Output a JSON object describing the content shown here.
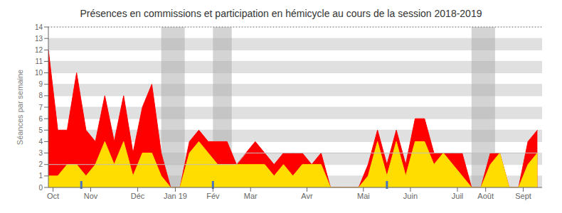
{
  "chart_data": {
    "type": "area",
    "title": "Présences en commissions et participation en hémicycle au cours de la session 2018-2019",
    "ylabel": "Séances par semaine",
    "x": [
      0,
      1,
      2,
      3,
      4,
      5,
      6,
      7,
      8,
      9,
      10,
      11,
      12,
      13,
      14,
      15,
      16,
      17,
      18,
      19,
      20,
      21,
      22,
      23,
      24,
      25,
      26,
      27,
      28,
      29,
      30,
      31,
      32,
      33,
      34,
      35,
      36,
      37,
      38,
      39,
      40,
      41,
      42,
      43,
      44,
      45,
      46,
      47,
      48,
      49,
      50,
      51,
      52
    ],
    "series": [
      {
        "type": "line",
        "color": "#c0c0c0",
        "values": [
          2,
          2,
          2,
          2,
          2,
          2,
          2,
          2,
          2,
          2,
          2,
          2,
          2,
          2,
          2,
          2,
          2,
          2,
          2,
          2,
          2,
          3,
          3,
          3,
          3,
          3,
          3,
          3,
          3,
          3,
          3,
          3,
          3,
          3,
          3,
          3,
          3,
          3,
          3,
          3,
          3,
          3,
          3,
          3,
          3,
          3,
          3,
          3,
          3,
          3,
          3,
          3,
          3
        ]
      },
      {
        "type": "area",
        "color": "#ff0000",
        "values": [
          12,
          5,
          5,
          10,
          5,
          4,
          8,
          4,
          8,
          3,
          7,
          9,
          3,
          0,
          0,
          4,
          5,
          4,
          4,
          4,
          2,
          3,
          4,
          3,
          2,
          3,
          3,
          3,
          2,
          3,
          0,
          0,
          0,
          0,
          2,
          5,
          2,
          5,
          2,
          6,
          6,
          3,
          3,
          3,
          3,
          0,
          0,
          3,
          3,
          0,
          0,
          4,
          5
        ]
      },
      {
        "type": "area",
        "color": "#ffdd00",
        "values": [
          1,
          1,
          2,
          2,
          1,
          2,
          4,
          2,
          4,
          1,
          3,
          3,
          1,
          0,
          0,
          3,
          4,
          3,
          2,
          2,
          2,
          2,
          2,
          2,
          1,
          2,
          1,
          2,
          2,
          2,
          0,
          0,
          0,
          0,
          1,
          4,
          1,
          4,
          1,
          4,
          4,
          2,
          3,
          2,
          1,
          0,
          0,
          2,
          3,
          0,
          0,
          2,
          3
        ]
      }
    ],
    "xlim": [
      0,
      52.5
    ],
    "xticks": [
      {
        "value": 0.5,
        "label": "Oct"
      },
      {
        "value": 4.5,
        "label": "Nov"
      },
      {
        "value": 9.5,
        "label": "Déc"
      },
      {
        "value": 13.5,
        "label": "Jan 19"
      },
      {
        "value": 17.5,
        "label": "Fév"
      },
      {
        "value": 21.5,
        "label": "Mar"
      },
      {
        "value": 27.5,
        "label": "Avr"
      },
      {
        "value": 33.5,
        "label": "Mai"
      },
      {
        "value": 38.5,
        "label": "Juin"
      },
      {
        "value": 43.5,
        "label": "Juil"
      },
      {
        "value": 46.5,
        "label": "Août"
      },
      {
        "value": 50.5,
        "label": "Sept"
      }
    ],
    "ylim": [
      0,
      14
    ],
    "yticks": [
      0,
      1,
      2,
      3,
      4,
      5,
      6,
      7,
      8,
      9,
      10,
      11,
      12,
      13,
      14
    ],
    "grid": true,
    "shaded_regions": {
      "color": "#aaaaaa",
      "ranges": [
        {
          "start": 12.0,
          "end": 14.5
        },
        {
          "start": 17.5,
          "end": 19.5
        },
        {
          "start": 45.0,
          "end": 47.5
        }
      ]
    },
    "vertical_markers": {
      "color": "#4472c4",
      "x": [
        3.5,
        17.5,
        36.0
      ]
    },
    "reference_line": {
      "y": 14,
      "line_style": "dotted"
    }
  }
}
